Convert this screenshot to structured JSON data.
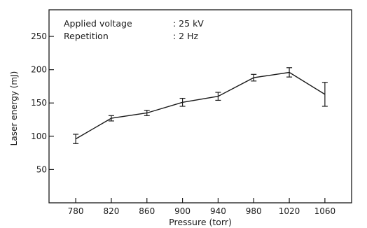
{
  "chart_data": {
    "type": "line",
    "title": "",
    "annotations": [
      {
        "label": "Applied voltage",
        "value": ": 25 kV"
      },
      {
        "label": "Repetition",
        "value": ": 2 Hz"
      }
    ],
    "xlabel": "Pressure (torr)",
    "ylabel": "Laser energy (mJ)",
    "x": [
      780,
      820,
      860,
      900,
      940,
      980,
      1020,
      1060
    ],
    "x_tick_labels": [
      "780",
      "820",
      "860",
      "900",
      "940",
      "980",
      "1020",
      "1060"
    ],
    "y_ticks": [
      50,
      100,
      150,
      200,
      250
    ],
    "y_tick_labels": [
      "50",
      "100",
      "150",
      "200",
      "250"
    ],
    "xlim": [
      750,
      1090
    ],
    "ylim": [
      0,
      290
    ],
    "grid": false,
    "series": [
      {
        "values": [
          96,
          127,
          135,
          151,
          160,
          188,
          196,
          163
        ],
        "error": [
          7,
          4,
          4,
          6,
          6,
          5,
          7,
          18
        ]
      }
    ]
  }
}
